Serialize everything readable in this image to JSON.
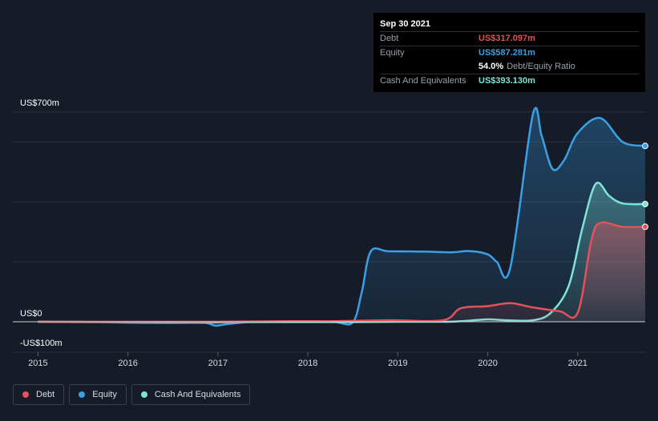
{
  "tooltip": {
    "date": "Sep 30 2021",
    "rows": [
      {
        "label": "Debt",
        "value": "US$317.097m",
        "color": "#e2525b"
      },
      {
        "label": "Equity",
        "value": "US$587.281m",
        "color": "#3b9fe6"
      },
      {
        "label": "Cash And Equivalents",
        "value": "US$393.130m",
        "color": "#7fe3d6"
      }
    ],
    "ratio_pct": "54.0%",
    "ratio_label": "Debt/Equity Ratio"
  },
  "legend": [
    {
      "label": "Debt",
      "color": "#e2525b"
    },
    {
      "label": "Equity",
      "color": "#3b9fe6"
    },
    {
      "label": "Cash And Equivalents",
      "color": "#7fe3d6"
    }
  ],
  "chart_data": {
    "type": "area",
    "x_ticks": [
      "2015",
      "2016",
      "2017",
      "2018",
      "2019",
      "2020",
      "2021"
    ],
    "y_tick_labels": [
      "US$700m",
      "US$0",
      "-US$100m"
    ],
    "ylim": [
      -100,
      700
    ],
    "xlim": [
      2014.72,
      2021.75
    ],
    "grid": true,
    "legend_position": "bottom-left",
    "series": [
      {
        "name": "Equity",
        "color": "#3b9fe6",
        "points": [
          [
            2015.0,
            0
          ],
          [
            2015.5,
            0
          ],
          [
            2016.0,
            -3
          ],
          [
            2016.5,
            -4
          ],
          [
            2016.85,
            -3
          ],
          [
            2016.97,
            -13
          ],
          [
            2017.1,
            -8
          ],
          [
            2017.3,
            -2
          ],
          [
            2017.5,
            -1
          ],
          [
            2017.8,
            0
          ],
          [
            2018.0,
            0
          ],
          [
            2018.3,
            -1
          ],
          [
            2018.5,
            -2
          ],
          [
            2018.6,
            100
          ],
          [
            2018.7,
            235
          ],
          [
            2018.9,
            235
          ],
          [
            2019.3,
            234
          ],
          [
            2019.6,
            232
          ],
          [
            2019.8,
            236
          ],
          [
            2020.0,
            225
          ],
          [
            2020.1,
            200
          ],
          [
            2020.25,
            180
          ],
          [
            2020.5,
            690
          ],
          [
            2020.6,
            620
          ],
          [
            2020.72,
            510
          ],
          [
            2020.85,
            540
          ],
          [
            2021.0,
            630
          ],
          [
            2021.25,
            680
          ],
          [
            2021.5,
            600
          ],
          [
            2021.75,
            587
          ]
        ]
      },
      {
        "name": "Cash And Equivalents",
        "color": "#7fe3d6",
        "points": [
          [
            2015.0,
            0
          ],
          [
            2015.5,
            -1
          ],
          [
            2016.0,
            -1
          ],
          [
            2016.5,
            -2
          ],
          [
            2016.85,
            -3
          ],
          [
            2017.0,
            -2
          ],
          [
            2017.3,
            -1
          ],
          [
            2018.0,
            -1
          ],
          [
            2018.5,
            -1
          ],
          [
            2019.0,
            0
          ],
          [
            2019.5,
            0
          ],
          [
            2019.7,
            2
          ],
          [
            2020.0,
            8
          ],
          [
            2020.2,
            5
          ],
          [
            2020.5,
            5
          ],
          [
            2020.7,
            30
          ],
          [
            2020.9,
            120
          ],
          [
            2021.05,
            310
          ],
          [
            2021.2,
            460
          ],
          [
            2021.35,
            420
          ],
          [
            2021.5,
            395
          ],
          [
            2021.75,
            393
          ]
        ]
      },
      {
        "name": "Debt",
        "color": "#e2525b",
        "points": [
          [
            2015.0,
            0
          ],
          [
            2016.0,
            0
          ],
          [
            2017.0,
            0
          ],
          [
            2017.8,
            2
          ],
          [
            2018.3,
            2
          ],
          [
            2018.9,
            5
          ],
          [
            2019.5,
            5
          ],
          [
            2019.7,
            45
          ],
          [
            2020.0,
            52
          ],
          [
            2020.25,
            62
          ],
          [
            2020.5,
            48
          ],
          [
            2020.8,
            35
          ],
          [
            2021.0,
            30
          ],
          [
            2021.15,
            270
          ],
          [
            2021.25,
            330
          ],
          [
            2021.5,
            317
          ],
          [
            2021.75,
            317
          ]
        ]
      }
    ]
  }
}
